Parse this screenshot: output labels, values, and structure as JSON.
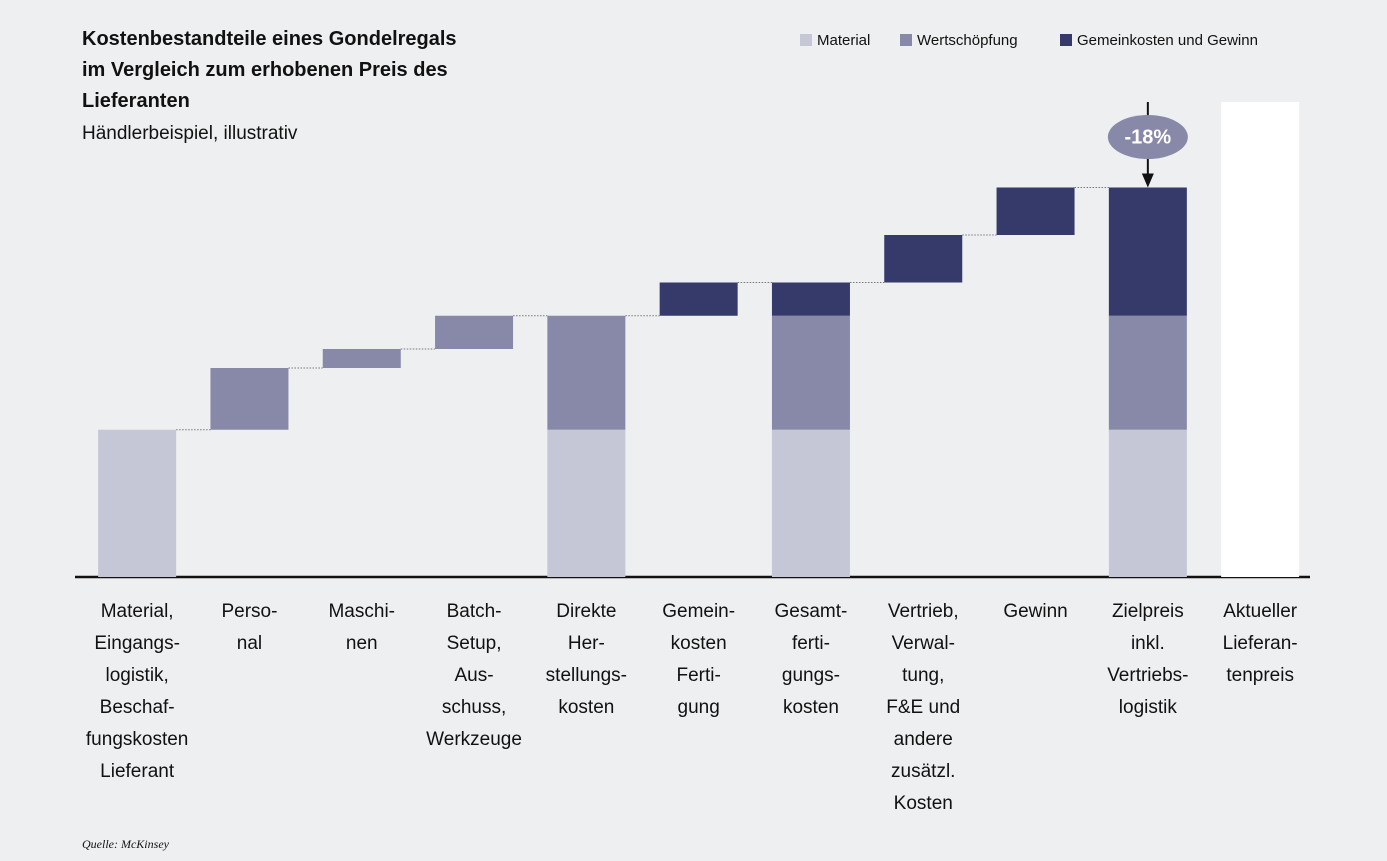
{
  "chart_data": {
    "type": "waterfall",
    "title": "Kostenbestandteile eines Gondelregals\nim Vergleich zum erhobenen Preis des\nLieferanten",
    "subtitle": "Händlerbeispiel, illustrativ",
    "source": "Quelle: McKinsey",
    "annotation": "-18%",
    "categories": [
      "Material,\nEingangs-\nlogistik,\nBeschaf-\nfungskosten\nLieferant",
      "Perso-\nnal",
      "Maschi-\nnen",
      "Batch-\nSetup,\nAus-\nschuss,\nWerkzeuge",
      "Direkte\nHer-\nstellungs-\nkosten",
      "Gemein-\nkosten\nFerti-\ngung",
      "Gesamt-\nferti-\ngungs-\nkosten",
      "Vertrieb,\nVerwal-\ntung,\nF&E und\nandere\nzusätzl.\nKosten",
      "Gewinn",
      "Zielpreis\ninkl.\nVertriebs-\nlogistik",
      "Aktueller\nLieferan-\ntenpreis"
    ],
    "bar_kinds": [
      "total",
      "step",
      "step",
      "step",
      "total",
      "step",
      "total",
      "step",
      "step",
      "total",
      "reference"
    ],
    "series": [
      {
        "name": "Material",
        "color": "#c5c6d6",
        "values": [
          31,
          null,
          null,
          null,
          31,
          null,
          31,
          null,
          null,
          31,
          null
        ]
      },
      {
        "name": "Wertschöpfung",
        "color": "#8889a8",
        "values": [
          null,
          13,
          4,
          7,
          24,
          null,
          24,
          null,
          null,
          24,
          null
        ]
      },
      {
        "name": "Gemeinkosten und Gewinn",
        "color": "#353a6b",
        "values": [
          null,
          null,
          null,
          null,
          null,
          7,
          7,
          10,
          10,
          27,
          null
        ]
      }
    ],
    "reference_value": 100,
    "reference_color": "#ffffff",
    "ylim": [
      0,
      100
    ]
  }
}
